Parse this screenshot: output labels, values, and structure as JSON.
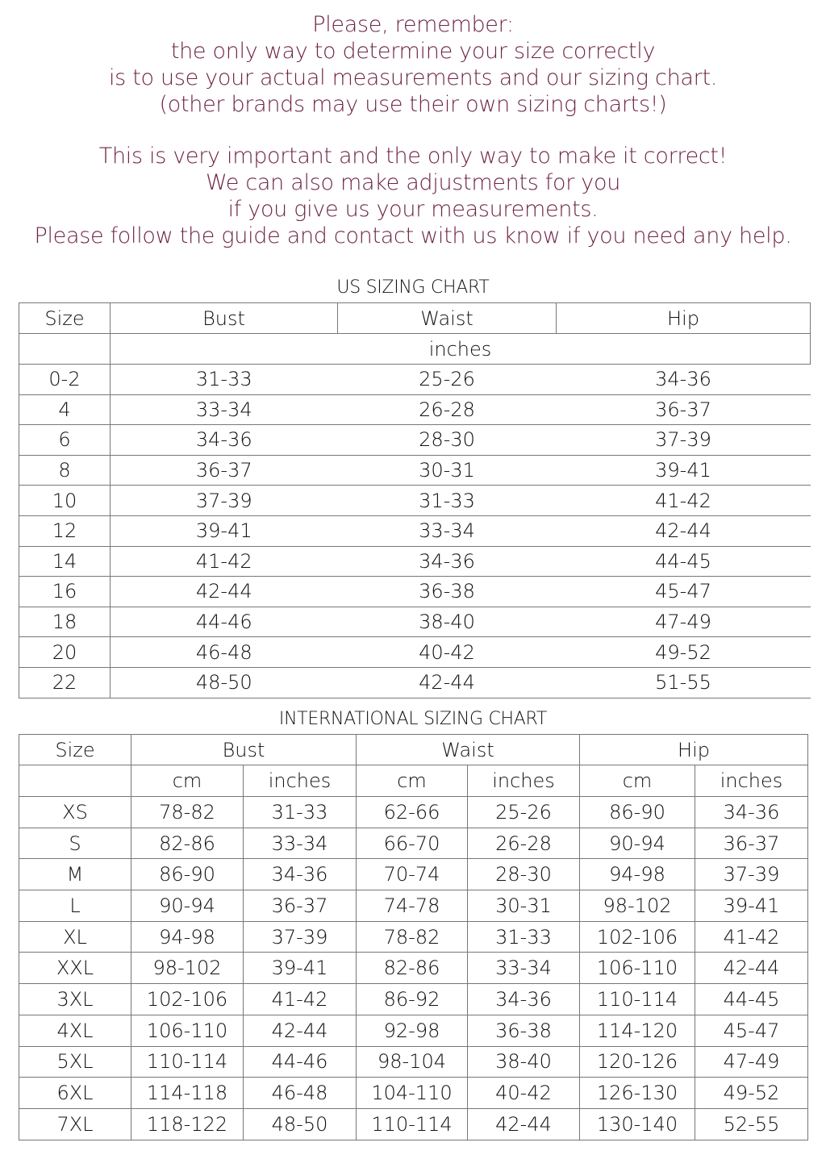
{
  "notice": {
    "paragraphs": [
      [
        "Please, remember:",
        "the only way to determine your size correctly",
        "is to use your actual measurements and our sizing chart.",
        "(other brands may use their own sizing charts!)"
      ],
      [
        "This is very important and the only way to make it correct!",
        "We can also make adjustments for you",
        "if you give us your measurements.",
        "Please follow the guide and contact with us know if you need any help."
      ]
    ]
  },
  "us_chart": {
    "title": "US SIZING CHART",
    "header": [
      "Size",
      "Bust",
      "Waist",
      "Hip"
    ],
    "unit": "inches",
    "rows": [
      [
        "0-2",
        "31-33",
        "25-26",
        "34-36"
      ],
      [
        "4",
        "33-34",
        "26-28",
        "36-37"
      ],
      [
        "6",
        "34-36",
        "28-30",
        "37-39"
      ],
      [
        "8",
        "36-37",
        "30-31",
        "39-41"
      ],
      [
        "10",
        "37-39",
        "31-33",
        "41-42"
      ],
      [
        "12",
        "39-41",
        "33-34",
        "42-44"
      ],
      [
        "14",
        "41-42",
        "34-36",
        "44-45"
      ],
      [
        "16",
        "42-44",
        "36-38",
        "45-47"
      ],
      [
        "18",
        "44-46",
        "38-40",
        "47-49"
      ],
      [
        "20",
        "46-48",
        "40-42",
        "49-52"
      ],
      [
        "22",
        "48-50",
        "42-44",
        "51-55"
      ]
    ]
  },
  "intl_chart": {
    "title": "INTERNATIONAL SIZING CHART",
    "header": [
      "Size",
      "Bust",
      "Waist",
      "Hip"
    ],
    "subheader": [
      "cm",
      "inches",
      "cm",
      "inches",
      "cm",
      "inches"
    ],
    "rows": [
      [
        "XS",
        "78-82",
        "31-33",
        "62-66",
        "25-26",
        "86-90",
        "34-36"
      ],
      [
        "S",
        "82-86",
        "33-34",
        "66-70",
        "26-28",
        "90-94",
        "36-37"
      ],
      [
        "M",
        "86-90",
        "34-36",
        "70-74",
        "28-30",
        "94-98",
        "37-39"
      ],
      [
        "L",
        "90-94",
        "36-37",
        "74-78",
        "30-31",
        "98-102",
        "39-41"
      ],
      [
        "XL",
        "94-98",
        "37-39",
        "78-82",
        "31-33",
        "102-106",
        "41-42"
      ],
      [
        "XXL",
        "98-102",
        "39-41",
        "82-86",
        "33-34",
        "106-110",
        "42-44"
      ],
      [
        "3XL",
        "102-106",
        "41-42",
        "86-92",
        "34-36",
        "110-114",
        "44-45"
      ],
      [
        "4XL",
        "106-110",
        "42-44",
        "92-98",
        "36-38",
        "114-120",
        "45-47"
      ],
      [
        "5XL",
        "110-114",
        "44-46",
        "98-104",
        "38-40",
        "120-126",
        "47-49"
      ],
      [
        "6XL",
        "114-118",
        "46-48",
        "104-110",
        "40-42",
        "126-130",
        "49-52"
      ],
      [
        "7XL",
        "118-122",
        "48-50",
        "110-114",
        "42-44",
        "130-140",
        "52-55"
      ]
    ]
  }
}
